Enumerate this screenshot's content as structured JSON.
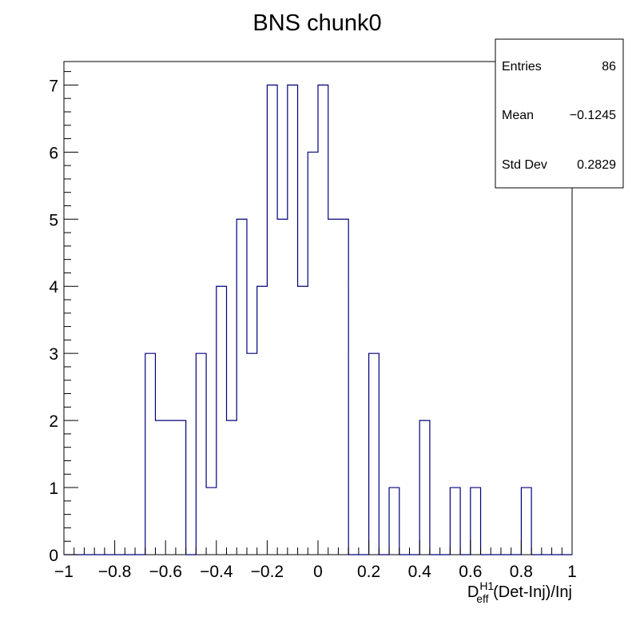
{
  "chart_data": {
    "type": "bar",
    "histogram": true,
    "title": "BNS chunk0",
    "xlabel": {
      "base": "D",
      "superscript": "H1",
      "subscript": "eff",
      "rest": " (Det-Inj)/Inj"
    },
    "ylabel": "",
    "xlim": [
      -1,
      1
    ],
    "ylim": [
      0,
      7.35
    ],
    "x_ticks": [
      {
        "value": -1,
        "label": "−1"
      },
      {
        "value": -0.8,
        "label": "−0.8"
      },
      {
        "value": -0.6,
        "label": "−0.6"
      },
      {
        "value": -0.4,
        "label": "−0.4"
      },
      {
        "value": -0.2,
        "label": "−0.2"
      },
      {
        "value": 0,
        "label": "0"
      },
      {
        "value": 0.2,
        "label": "0.2"
      },
      {
        "value": 0.4,
        "label": "0.4"
      },
      {
        "value": 0.6,
        "label": "0.6"
      },
      {
        "value": 0.8,
        "label": "0.8"
      },
      {
        "value": 1,
        "label": "1"
      }
    ],
    "y_ticks": [
      {
        "value": 0,
        "label": "0"
      },
      {
        "value": 1,
        "label": "1"
      },
      {
        "value": 2,
        "label": "2"
      },
      {
        "value": 3,
        "label": "3"
      },
      {
        "value": 4,
        "label": "4"
      },
      {
        "value": 5,
        "label": "5"
      },
      {
        "value": 6,
        "label": "6"
      },
      {
        "value": 7,
        "label": "7"
      }
    ],
    "bin_edges": [
      -1,
      -0.96,
      -0.92,
      -0.88,
      -0.84,
      -0.8,
      -0.76,
      -0.72,
      -0.68,
      -0.64,
      -0.6,
      -0.56,
      -0.52,
      -0.48,
      -0.44,
      -0.4,
      -0.36,
      -0.32,
      -0.28,
      -0.24,
      -0.2,
      -0.16,
      -0.12,
      -0.08,
      -0.04,
      0,
      0.04,
      0.08,
      0.12,
      0.16,
      0.2,
      0.24,
      0.28,
      0.32,
      0.36,
      0.4,
      0.44,
      0.48,
      0.52,
      0.56,
      0.6,
      0.64,
      0.68,
      0.72,
      0.76,
      0.8,
      0.84,
      0.88,
      0.92,
      0.96,
      1
    ],
    "counts": [
      0,
      0,
      0,
      0,
      0,
      0,
      0,
      0,
      3,
      2,
      2,
      2,
      0,
      3,
      1,
      4,
      2,
      5,
      3,
      4,
      7,
      5,
      7,
      4,
      6,
      7,
      5,
      5,
      0,
      0,
      3,
      0,
      1,
      0,
      0,
      2,
      0,
      0,
      1,
      0,
      1,
      0,
      0,
      0,
      0,
      1,
      0,
      0,
      0,
      0
    ],
    "line_color": "#00007f",
    "grid": false,
    "stats_box": {
      "position": "top-right",
      "entries": [
        {
          "label": "Entries",
          "value": "86"
        },
        {
          "label": "Mean",
          "value": "−0.1245"
        },
        {
          "label": "Std Dev",
          "value": "0.2829"
        }
      ]
    }
  }
}
